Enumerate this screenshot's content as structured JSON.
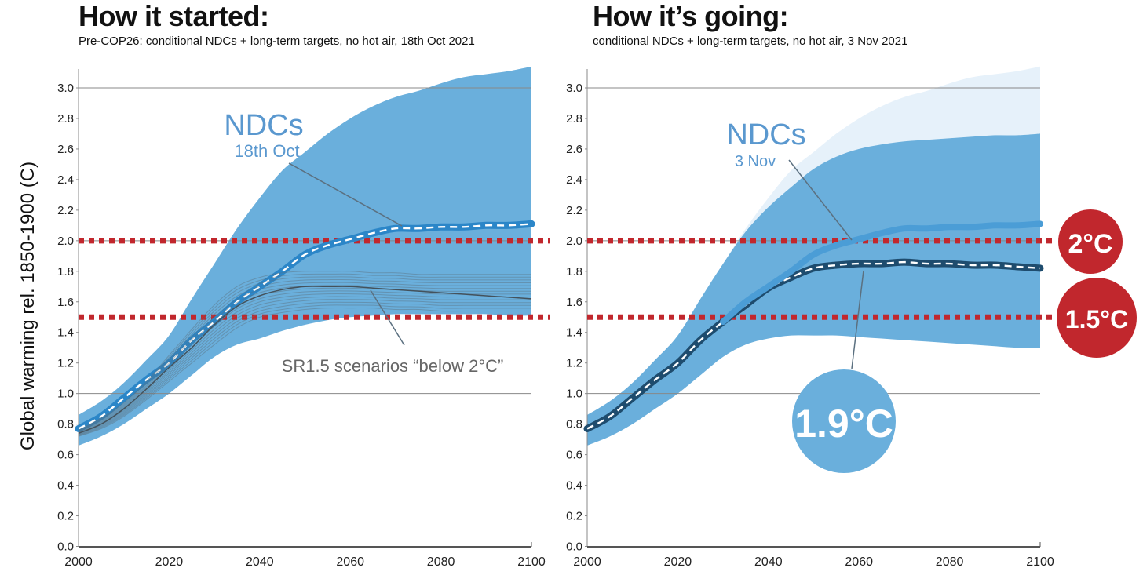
{
  "panels": [
    {
      "title": "How it started:",
      "subtitle": "Pre-COP26: conditional NDCs + long-term targets, no hot air, 18th Oct 2021",
      "annotation_title": "NDCs",
      "annotation_date": "18th Oct",
      "scenario_label": "SR1.5 scenarios “below 2°C”"
    },
    {
      "title": "How it’s going:",
      "subtitle": "conditional NDCs + long-term targets, no hot air, 3 Nov 2021",
      "annotation_title": "NDCs",
      "annotation_date": "3 Nov",
      "result_badge": "1.9°C"
    }
  ],
  "threshold_badges": [
    "2°C",
    "1.5°C"
  ],
  "y_axis_label": "Global warming rel. 1850-1900 (C)",
  "colors": {
    "band": "#6aafdc",
    "band_light": "#e6f1fa",
    "ndc_old": "#2b86c8",
    "ndc_new": "#1e4c6e",
    "threshold": "#c1272d",
    "gridline": "#888888",
    "scenario": "#5a6e7c"
  },
  "chart_data": [
    {
      "type": "line",
      "title": "How it started:",
      "subtitle": "Pre-COP26: conditional NDCs + long-term targets, no hot air, 18th Oct 2021",
      "ylabel": "Global warming rel. 1850-1900 (C)",
      "xlim": [
        2000,
        2100
      ],
      "ylim": [
        0,
        3.15
      ],
      "x_ticks": [
        2000,
        2020,
        2040,
        2060,
        2080,
        2100
      ],
      "y_ticks": [
        0.0,
        0.2,
        0.4,
        0.6,
        0.8,
        1.0,
        1.2,
        1.4,
        1.6,
        1.8,
        2.0,
        2.2,
        2.4,
        2.6,
        2.8,
        3.0
      ],
      "thresholds": [
        2.0,
        1.5
      ],
      "uncertainty_band": {
        "x": [
          2000,
          2005,
          2010,
          2015,
          2020,
          2025,
          2030,
          2035,
          2040,
          2045,
          2050,
          2055,
          2060,
          2065,
          2070,
          2075,
          2080,
          2085,
          2090,
          2095,
          2100
        ],
        "upper": [
          0.86,
          0.95,
          1.07,
          1.22,
          1.38,
          1.62,
          1.85,
          2.08,
          2.28,
          2.46,
          2.58,
          2.7,
          2.8,
          2.88,
          2.94,
          2.98,
          3.03,
          3.07,
          3.09,
          3.11,
          3.14
        ],
        "lower": [
          0.66,
          0.72,
          0.8,
          0.9,
          1.0,
          1.12,
          1.24,
          1.32,
          1.36,
          1.41,
          1.45,
          1.48,
          1.5,
          1.51,
          1.52,
          1.52,
          1.52,
          1.52,
          1.52,
          1.51,
          1.51
        ]
      },
      "series": [
        {
          "name": "NDCs",
          "x": [
            2000,
            2005,
            2010,
            2015,
            2020,
            2025,
            2030,
            2035,
            2040,
            2045,
            2050,
            2055,
            2060,
            2065,
            2070,
            2075,
            2080,
            2085,
            2090,
            2095,
            2100
          ],
          "values": [
            0.77,
            0.85,
            0.97,
            1.09,
            1.2,
            1.35,
            1.47,
            1.6,
            1.7,
            1.8,
            1.91,
            1.97,
            2.01,
            2.05,
            2.08,
            2.08,
            2.09,
            2.09,
            2.1,
            2.1,
            2.11
          ]
        },
        {
          "name": "SR1.5 scenarios “below 2°C”",
          "x": [
            2000,
            2005,
            2010,
            2015,
            2020,
            2025,
            2030,
            2035,
            2040,
            2045,
            2050,
            2055,
            2060,
            2065,
            2070,
            2075,
            2080,
            2085,
            2090,
            2095,
            2100
          ],
          "values": [
            0.74,
            0.8,
            0.9,
            1.03,
            1.17,
            1.3,
            1.45,
            1.57,
            1.64,
            1.68,
            1.7,
            1.7,
            1.7,
            1.69,
            1.68,
            1.67,
            1.66,
            1.65,
            1.64,
            1.63,
            1.62
          ],
          "range_upper": [
            0.76,
            0.84,
            0.94,
            1.08,
            1.25,
            1.42,
            1.58,
            1.7,
            1.76,
            1.79,
            1.8,
            1.8,
            1.8,
            1.79,
            1.79,
            1.78,
            1.78,
            1.78,
            1.78,
            1.78,
            1.78
          ],
          "range_lower": [
            0.72,
            0.77,
            0.85,
            0.96,
            1.08,
            1.2,
            1.32,
            1.43,
            1.5,
            1.53,
            1.55,
            1.56,
            1.56,
            1.56,
            1.55,
            1.55,
            1.54,
            1.54,
            1.54,
            1.54,
            1.54
          ]
        }
      ]
    },
    {
      "type": "line",
      "title": "How it’s going:",
      "subtitle": "conditional NDCs + long-term targets, no hot air, 3 Nov 2021",
      "xlim": [
        2000,
        2100
      ],
      "ylim": [
        0,
        3.15
      ],
      "x_ticks": [
        2000,
        2020,
        2040,
        2060,
        2080,
        2100
      ],
      "y_ticks": [
        0.0,
        0.2,
        0.4,
        0.6,
        0.8,
        1.0,
        1.2,
        1.4,
        1.6,
        1.8,
        2.0,
        2.2,
        2.4,
        2.6,
        2.8,
        3.0
      ],
      "thresholds": [
        2.0,
        1.5
      ],
      "uncertainty_band": {
        "x": [
          2000,
          2005,
          2010,
          2015,
          2020,
          2025,
          2030,
          2035,
          2040,
          2045,
          2050,
          2055,
          2060,
          2065,
          2070,
          2075,
          2080,
          2085,
          2090,
          2095,
          2100
        ],
        "upper": [
          0.86,
          0.95,
          1.07,
          1.22,
          1.38,
          1.62,
          1.85,
          2.06,
          2.22,
          2.35,
          2.47,
          2.55,
          2.6,
          2.63,
          2.65,
          2.66,
          2.67,
          2.68,
          2.69,
          2.69,
          2.7
        ],
        "lower": [
          0.66,
          0.72,
          0.8,
          0.9,
          1.0,
          1.12,
          1.24,
          1.32,
          1.36,
          1.38,
          1.38,
          1.38,
          1.37,
          1.36,
          1.35,
          1.34,
          1.33,
          1.32,
          1.31,
          1.3,
          1.3
        ]
      },
      "previous_band_upper": [
        0.86,
        0.95,
        1.07,
        1.22,
        1.38,
        1.62,
        1.85,
        2.08,
        2.28,
        2.46,
        2.58,
        2.7,
        2.8,
        2.88,
        2.94,
        2.98,
        3.03,
        3.07,
        3.09,
        3.11,
        3.14
      ],
      "series": [
        {
          "name": "NDCs",
          "x": [
            2000,
            2005,
            2010,
            2015,
            2020,
            2025,
            2030,
            2035,
            2040,
            2045,
            2050,
            2055,
            2060,
            2065,
            2070,
            2075,
            2080,
            2085,
            2090,
            2095,
            2100
          ],
          "values": [
            0.77,
            0.85,
            0.97,
            1.09,
            1.2,
            1.35,
            1.47,
            1.58,
            1.69,
            1.76,
            1.82,
            1.84,
            1.85,
            1.85,
            1.86,
            1.85,
            1.85,
            1.84,
            1.84,
            1.83,
            1.82
          ]
        },
        {
          "name": "NDCs 18th Oct",
          "x": [
            2030,
            2035,
            2040,
            2045,
            2050,
            2055,
            2060,
            2065,
            2070,
            2075,
            2080,
            2085,
            2090,
            2095,
            2100
          ],
          "values": [
            1.47,
            1.6,
            1.7,
            1.8,
            1.91,
            1.97,
            2.01,
            2.05,
            2.08,
            2.08,
            2.09,
            2.09,
            2.1,
            2.1,
            2.11
          ]
        }
      ],
      "annotations": [
        "1.9°C",
        "2°C",
        "1.5°C"
      ]
    }
  ]
}
